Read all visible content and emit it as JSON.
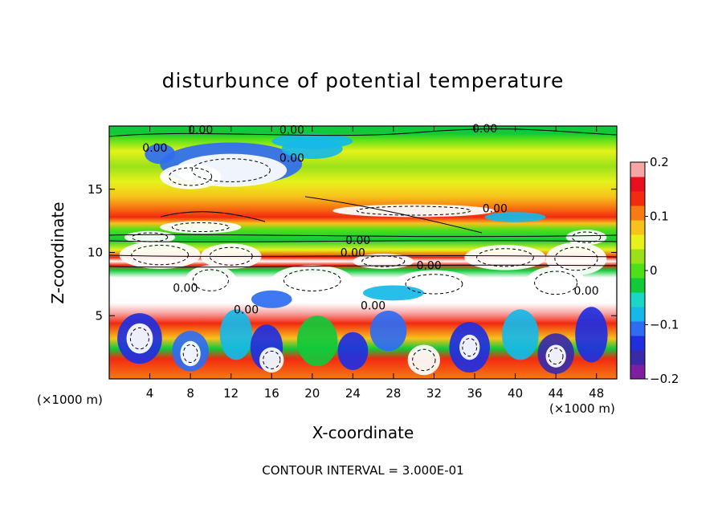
{
  "chart_data": {
    "type": "heatmap",
    "title": "disturbunce of potential temperature",
    "xlabel": "X-coordinate",
    "ylabel": "Z-coordinate",
    "x_unit_left": "(×1000 m)",
    "x_unit_right": "(×1000 m)",
    "contour_interval_text": "CONTOUR INTERVAL = 3.000E-01",
    "xlim": [
      0,
      50
    ],
    "ylim": [
      0,
      20
    ],
    "x_ticks": [
      4,
      8,
      12,
      16,
      20,
      24,
      28,
      32,
      36,
      40,
      44,
      48
    ],
    "y_ticks": [
      5,
      10,
      15
    ],
    "colorbar": {
      "range": [
        -0.2,
        0.2
      ],
      "tick_values": [
        0.2,
        0.1,
        0,
        -0.1,
        -0.2
      ],
      "tick_labels": [
        "0.2",
        "0.1",
        "0",
        "−0.1",
        "−0.2"
      ],
      "colors": [
        "#7e1fa3",
        "#3a2aa8",
        "#1f2fe0",
        "#2f6cf2",
        "#16b8e8",
        "#19d7c4",
        "#12c93a",
        "#4fdf19",
        "#9be11a",
        "#e6f21a",
        "#f7c21c",
        "#f77b12",
        "#f22a10",
        "#e8101e",
        "#f7a5a5"
      ]
    },
    "contour_labels": [
      {
        "text": "0.00",
        "x": 9,
        "z": 19.7
      },
      {
        "text": "0.00",
        "x": 18,
        "z": 19.7
      },
      {
        "text": "0.00",
        "x": 37,
        "z": 19.8
      },
      {
        "text": "0.00",
        "x": 4.5,
        "z": 18.3
      },
      {
        "text": "0.00",
        "x": 18,
        "z": 17.5
      },
      {
        "text": "0.00",
        "x": 38,
        "z": 13.5
      },
      {
        "text": "0.00",
        "x": 24.5,
        "z": 11.0
      },
      {
        "text": "0.00",
        "x": 24,
        "z": 10.0
      },
      {
        "text": "0.00",
        "x": 31.5,
        "z": 9.0
      },
      {
        "text": "0.00",
        "x": 7.5,
        "z": 7.2
      },
      {
        "text": "0.00",
        "x": 13.5,
        "z": 5.5
      },
      {
        "text": "0.00",
        "x": 26,
        "z": 5.8
      },
      {
        "text": "0.00",
        "x": 47,
        "z": 7.0
      }
    ]
  }
}
